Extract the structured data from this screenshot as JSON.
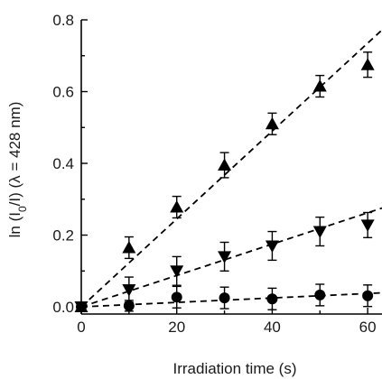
{
  "chart_data": {
    "type": "scatter",
    "xlabel": "Irradiation time (s)",
    "ylabel_main": "ln (I",
    "ylabel_sub": "0",
    "ylabel_rest": "/I) (λ = 428 nm)",
    "xlim": [
      0,
      63
    ],
    "ylim": [
      -0.02,
      0.8
    ],
    "x_ticks": [
      0,
      20,
      40,
      60
    ],
    "x_tick_labels": [
      "0",
      "20",
      "40",
      "60"
    ],
    "y_ticks": [
      0.0,
      0.2,
      0.4,
      0.6,
      0.8
    ],
    "y_tick_labels": [
      "0.0",
      "0.2",
      "0.4",
      "0.6",
      "0.8"
    ],
    "grid": false,
    "series": [
      {
        "marker": "triangle-up",
        "x": [
          0,
          10,
          20,
          30,
          40,
          50,
          60
        ],
        "y": [
          0.0,
          0.165,
          0.278,
          0.395,
          0.51,
          0.615,
          0.675
        ],
        "err": [
          0.01,
          0.03,
          0.03,
          0.035,
          0.03,
          0.03,
          0.035
        ],
        "fit": {
          "slope": 0.01225,
          "intercept": 0.0
        }
      },
      {
        "marker": "triangle-down",
        "x": [
          0,
          10,
          20,
          30,
          40,
          50,
          60
        ],
        "y": [
          0.0,
          0.048,
          0.1,
          0.14,
          0.17,
          0.21,
          0.228
        ],
        "err": [
          0.01,
          0.035,
          0.04,
          0.04,
          0.04,
          0.04,
          0.035
        ],
        "fit": {
          "slope": 0.00437,
          "intercept": 0.0
        }
      },
      {
        "marker": "circle",
        "x": [
          0,
          10,
          20,
          30,
          40,
          50,
          60
        ],
        "y": [
          0.0,
          0.003,
          0.027,
          0.025,
          0.022,
          0.033,
          0.031
        ],
        "err": [
          0.01,
          0.015,
          0.03,
          0.03,
          0.03,
          0.03,
          0.03
        ],
        "fit": {
          "slope": 0.00062,
          "intercept": 0.0
        }
      }
    ]
  }
}
